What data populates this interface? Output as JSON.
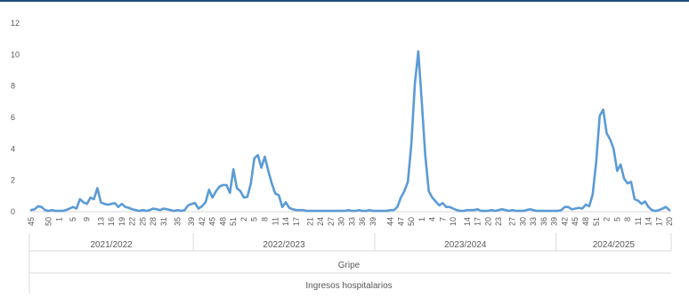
{
  "chart_data": {
    "type": "line",
    "title": "",
    "xlabel": "",
    "ylabel": "",
    "ylim": [
      0,
      12
    ],
    "y_ticks": [
      0,
      2,
      4,
      6,
      8,
      10,
      12
    ],
    "grid": false,
    "legend": "none",
    "line_color": "#5b9bd5",
    "category_levels": {
      "gripe_label": "Gripe",
      "ingresos_label": "Ingresos hospitalarios"
    },
    "seasons": [
      {
        "label": "2021/2022",
        "weeks": [
          45,
          46,
          47,
          48,
          49,
          50,
          51,
          52,
          1,
          2,
          3,
          4,
          5,
          6,
          7,
          8,
          9,
          10,
          11,
          12,
          13,
          14,
          15,
          16,
          17,
          18,
          19,
          20,
          21,
          22,
          23,
          24,
          25,
          26,
          27,
          28,
          29,
          30,
          31,
          32,
          33,
          34,
          35,
          36,
          37,
          38,
          39
        ],
        "tick_labels": [
          "45",
          "50",
          "1",
          "5",
          "9",
          "13",
          "16",
          "19",
          "22",
          "25",
          "28",
          "31",
          "35",
          "39"
        ],
        "values": [
          0.1,
          0.15,
          0.35,
          0.3,
          0.1,
          0.05,
          0.1,
          0.05,
          0.05,
          0.05,
          0.1,
          0.2,
          0.3,
          0.2,
          0.8,
          0.6,
          0.5,
          0.9,
          0.8,
          1.5,
          0.6,
          0.5,
          0.45,
          0.5,
          0.55,
          0.3,
          0.5,
          0.3,
          0.25,
          0.15,
          0.1,
          0.05,
          0.1,
          0.05,
          0.1,
          0.2,
          0.15,
          0.1,
          0.2,
          0.15,
          0.1,
          0.05,
          0.1,
          0.05,
          0.1,
          0.4,
          0.5
        ]
      },
      {
        "label": "2022/2023",
        "weeks": [
          40,
          41,
          42,
          43,
          44,
          45,
          46,
          47,
          48,
          49,
          50,
          51,
          52,
          1,
          2,
          3,
          4,
          5,
          6,
          7,
          8,
          9,
          10,
          11,
          12,
          13,
          14,
          15,
          16,
          17,
          18,
          19,
          20,
          21,
          22,
          23,
          24,
          25,
          26,
          27,
          28,
          29,
          30,
          31,
          32,
          33,
          34,
          35,
          36,
          37,
          38,
          39
        ],
        "tick_labels": [
          "42",
          "45",
          "48",
          "51",
          "2",
          "5",
          "8",
          "11",
          "14",
          "17",
          "21",
          "24",
          "27",
          "30",
          "33",
          "36",
          "39"
        ],
        "values": [
          0.55,
          0.2,
          0.35,
          0.6,
          1.4,
          0.9,
          1.3,
          1.6,
          1.7,
          1.7,
          1.2,
          2.7,
          1.5,
          1.3,
          0.9,
          0.95,
          1.8,
          3.4,
          3.6,
          2.8,
          3.5,
          2.6,
          1.8,
          1.15,
          1.05,
          0.3,
          0.6,
          0.25,
          0.15,
          0.1,
          0.1,
          0.1,
          0.05,
          0.05,
          0.05,
          0.05,
          0.05,
          0.05,
          0.05,
          0.05,
          0.05,
          0.05,
          0.05,
          0.05,
          0.1,
          0.05,
          0.05,
          0.1,
          0.05,
          0.05,
          0.1,
          0.05
        ]
      },
      {
        "label": "2023/2024",
        "weeks": [
          40,
          41,
          42,
          43,
          44,
          45,
          46,
          47,
          48,
          49,
          50,
          51,
          52,
          1,
          2,
          3,
          4,
          5,
          6,
          7,
          8,
          9,
          10,
          11,
          12,
          13,
          14,
          15,
          16,
          17,
          18,
          19,
          20,
          21,
          22,
          23,
          24,
          25,
          26,
          27,
          28,
          29,
          30,
          31,
          32,
          33,
          34,
          35,
          36,
          37,
          38,
          39
        ],
        "tick_labels": [
          "44",
          "47",
          "50",
          "1",
          "4",
          "7",
          "10",
          "14",
          "17",
          "20",
          "23",
          "27",
          "30",
          "33",
          "36",
          "39"
        ],
        "values": [
          0.05,
          0.05,
          0.05,
          0.05,
          0.1,
          0.1,
          0.3,
          0.9,
          1.3,
          1.9,
          4.3,
          8.1,
          10.2,
          7.0,
          3.6,
          1.3,
          0.9,
          0.65,
          0.4,
          0.55,
          0.3,
          0.3,
          0.2,
          0.1,
          0.05,
          0.05,
          0.1,
          0.1,
          0.1,
          0.15,
          0.05,
          0.05,
          0.05,
          0.1,
          0.05,
          0.1,
          0.15,
          0.1,
          0.05,
          0.1,
          0.05,
          0.05,
          0.05,
          0.1,
          0.15,
          0.1,
          0.05,
          0.05,
          0.05,
          0.05,
          0.05,
          0.05
        ]
      },
      {
        "label": "2024/2025",
        "weeks": [
          40,
          41,
          42,
          43,
          44,
          45,
          46,
          47,
          48,
          49,
          50,
          51,
          52,
          1,
          2,
          3,
          4,
          5,
          6,
          7,
          8,
          9,
          10,
          11,
          12,
          13,
          14,
          15,
          16,
          17,
          18,
          19,
          20
        ],
        "tick_labels": [
          "42",
          "45",
          "48",
          "51",
          "2",
          "5",
          "8",
          "11",
          "14",
          "17",
          "20"
        ],
        "values": [
          0.05,
          0.1,
          0.3,
          0.3,
          0.15,
          0.2,
          0.25,
          0.2,
          0.45,
          0.35,
          1.1,
          3.2,
          6.1,
          6.5,
          5.0,
          4.6,
          4.0,
          2.6,
          3.0,
          2.1,
          1.8,
          1.9,
          0.8,
          0.7,
          0.5,
          0.65,
          0.3,
          0.1,
          0.05,
          0.1,
          0.2,
          0.3,
          0.1
        ]
      }
    ]
  }
}
